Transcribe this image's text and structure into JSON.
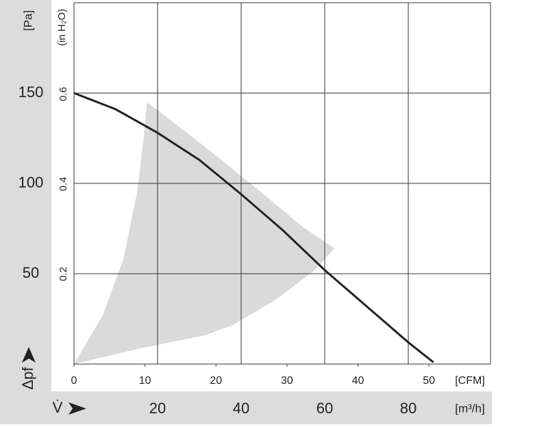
{
  "chart_data": {
    "type": "line",
    "y_label": "[Pa]",
    "y2_label": "(in H₂O)",
    "y_symbol": "Δpf",
    "x_symbol": "V̇",
    "x_label": "[m³/h]",
    "x2_label": "[CFM]",
    "xlim": [
      0,
      100
    ],
    "xticks": [
      20,
      40,
      60,
      80
    ],
    "x2lim": [
      0,
      58.86
    ],
    "x2ticks": [
      0,
      10,
      20,
      30,
      40,
      50
    ],
    "ylim": [
      0,
      200
    ],
    "yticks": [
      50,
      100,
      150
    ],
    "y2lim": [
      0,
      0.803
    ],
    "y2ticks": [
      0.2,
      0.4,
      0.6
    ],
    "grid": true,
    "series": [
      {
        "color": "#222222",
        "x": [
          0,
          10,
          20,
          30,
          40,
          50,
          60,
          70,
          80,
          86
        ],
        "values": [
          150,
          141,
          128,
          113,
          94,
          74,
          52,
          32,
          12,
          1
        ]
      }
    ],
    "region": {
      "color": "#dadada",
      "x": [
        0,
        6.9,
        11.8,
        15.1,
        16.7,
        17.5,
        31.5,
        44.6,
        54.4,
        62.3,
        57.7,
        47.9,
        38,
        31.5,
        15.1
      ],
      "y": [
        0,
        27,
        58,
        95,
        126,
        145,
        120,
        95.5,
        76.5,
        64,
        52,
        35,
        21.6,
        16,
        8.3
      ]
    }
  }
}
